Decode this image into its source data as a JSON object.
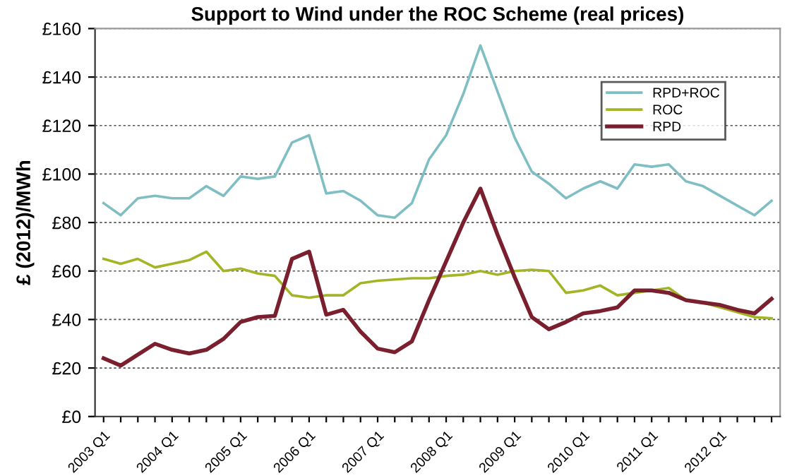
{
  "chart_data": {
    "type": "line",
    "title": "Support to Wind under the ROC Scheme (real prices)",
    "ylabel": "£ (2012)/MWh",
    "categories": [
      "2003 Q1",
      null,
      null,
      null,
      "2004 Q1",
      null,
      null,
      null,
      "2005 Q1",
      null,
      null,
      null,
      "2006 Q1",
      null,
      null,
      null,
      "2007 Q1",
      null,
      null,
      null,
      "2008 Q1",
      null,
      null,
      null,
      "2009 Q1",
      null,
      null,
      null,
      "2010 Q1",
      null,
      null,
      null,
      "2011 Q1",
      null,
      null,
      null,
      "2012 Q1",
      null,
      null,
      null
    ],
    "series": [
      {
        "name": "RPD+ROC",
        "color": "#7fbfc4",
        "values": [
          88,
          83,
          90,
          91,
          90,
          90,
          95,
          91,
          99,
          98,
          99,
          113,
          116,
          92,
          93,
          89,
          83,
          82,
          88,
          106,
          116,
          133,
          153,
          134,
          115,
          101,
          96,
          90,
          94,
          97,
          94,
          104,
          103,
          104,
          97,
          95,
          91,
          87,
          83,
          89
        ]
      },
      {
        "name": "ROC",
        "color": "#a3b526",
        "values": [
          65,
          63,
          65,
          61.5,
          63,
          64.5,
          68,
          60,
          61,
          59,
          58,
          50,
          49,
          50,
          50,
          55,
          56,
          56.5,
          57,
          57,
          58,
          58.5,
          60,
          58.5,
          60,
          60.5,
          60,
          51,
          52,
          54,
          50,
          51,
          52,
          53,
          48,
          47,
          45,
          43,
          41,
          40.5
        ]
      },
      {
        "name": "RPD",
        "color": "#7a1f2e",
        "values": [
          24,
          21,
          25.5,
          30,
          27.5,
          26,
          27.5,
          32,
          39,
          41,
          41.5,
          65,
          68,
          42,
          44,
          35,
          28,
          26.5,
          31,
          48,
          64,
          80,
          94,
          75,
          57.5,
          41,
          36,
          39,
          42.5,
          43.5,
          45,
          52,
          52,
          51,
          48,
          47,
          46,
          44,
          42.5,
          48.5
        ]
      }
    ],
    "ylim": [
      0,
      160
    ],
    "yticks": [
      {
        "value": 0,
        "label": "£0"
      },
      {
        "value": 20,
        "label": "£20"
      },
      {
        "value": 40,
        "label": "£40"
      },
      {
        "value": 60,
        "label": "£60"
      },
      {
        "value": 80,
        "label": "£80"
      },
      {
        "value": 100,
        "label": "£100"
      },
      {
        "value": 120,
        "label": "£120"
      },
      {
        "value": 140,
        "label": "£140"
      },
      {
        "value": 160,
        "label": "£160"
      }
    ],
    "grid": "y",
    "legend": "top right",
    "marker": "none",
    "line_style": "solid"
  }
}
